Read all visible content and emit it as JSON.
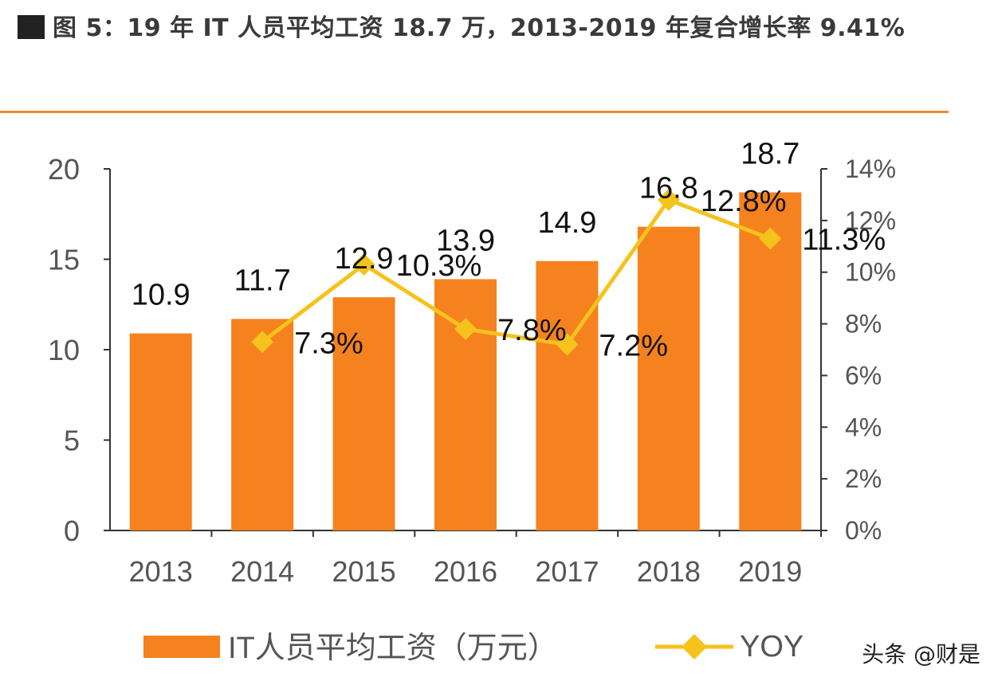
{
  "title": "图 5：19 年 IT 人员平均工资 18.7 万，2013-2019 年复合增长率 9.41%",
  "watermark": "头条 @财是",
  "colors": {
    "bar": "#f5821f",
    "line": "#f6c21c",
    "rule": "#f08a2c",
    "label": "#111111",
    "axis": "#555555"
  },
  "chart_data": {
    "type": "bar",
    "categories": [
      "2013",
      "2014",
      "2015",
      "2016",
      "2017",
      "2018",
      "2019"
    ],
    "series": [
      {
        "name": "IT人员平均工资（万元）",
        "type": "bar",
        "axis": "left",
        "values": [
          10.9,
          11.7,
          12.9,
          13.9,
          14.9,
          16.8,
          18.7
        ],
        "labels": [
          "10.9",
          "11.7",
          "12.9",
          "13.9",
          "14.9",
          "16.8",
          "18.7"
        ]
      },
      {
        "name": "YOY",
        "type": "line",
        "axis": "right",
        "values": [
          null,
          7.3,
          10.3,
          7.8,
          7.2,
          12.8,
          11.3
        ],
        "labels": [
          "",
          "7.3%",
          "10.3%",
          "7.8%",
          "7.2%",
          "12.8%",
          "11.3%"
        ]
      }
    ],
    "y_left": {
      "lim": [
        0,
        20
      ],
      "ticks": [
        "0",
        "5",
        "10",
        "15",
        "20"
      ]
    },
    "y_right": {
      "lim": [
        0,
        14
      ],
      "ticks": [
        "0%",
        "2%",
        "4%",
        "6%",
        "8%",
        "10%",
        "12%",
        "14%"
      ]
    },
    "grid": false,
    "legend": "bottom"
  }
}
